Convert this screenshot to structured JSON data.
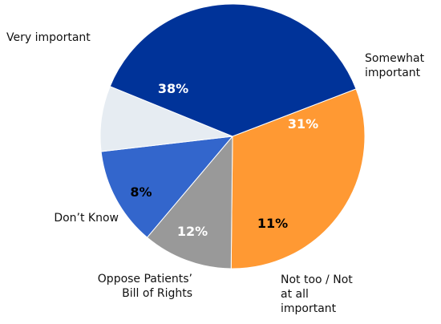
{
  "chart_data": {
    "type": "pie",
    "slices": [
      {
        "label": [
          "Somewhat",
          "important"
        ],
        "value": 31,
        "display": "31%",
        "color": "#FF9933",
        "text_color": "#ffffff"
      },
      {
        "label": [
          "Not too / Not",
          "at all",
          "important"
        ],
        "value": 11,
        "display": "11%",
        "color": "#999999",
        "text_color": "#000000"
      },
      {
        "label": [
          "Oppose Patients’",
          "Bill of Rights"
        ],
        "value": 12,
        "display": "12%",
        "color": "#3366CC",
        "text_color": "#ffffff"
      },
      {
        "label": [
          "Don’t Know"
        ],
        "value": 8,
        "display": "8%",
        "color": "#E6ECF2",
        "text_color": "#000000"
      },
      {
        "label": [
          "Very important"
        ],
        "value": 38,
        "display": "38%",
        "color": "#003399",
        "text_color": "#ffffff"
      }
    ]
  }
}
